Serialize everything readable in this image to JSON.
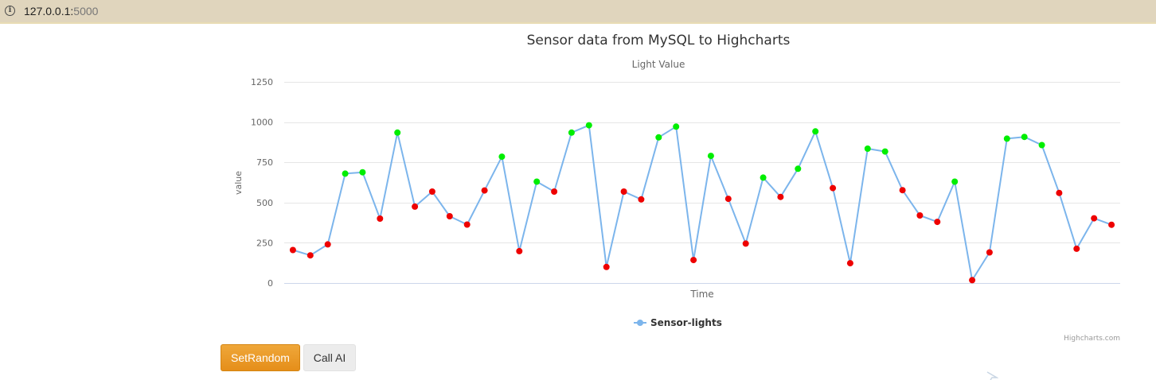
{
  "browser": {
    "url_host": "127.0.0.1:",
    "url_port": "5000"
  },
  "buttons": {
    "set_random": "SetRandom",
    "call_ai": "Call AI"
  },
  "colors": {
    "line": "#7cb5ec",
    "high_marker": "#00ee00",
    "low_marker": "#ee0000",
    "grid": "#e6e6e6",
    "text": "#333333",
    "axis_text": "#666666",
    "button_primary": "#e8951f"
  },
  "chart_data": {
    "type": "line",
    "title": "Sensor data from MySQL to Highcharts",
    "subtitle": "Light Value",
    "xlabel": "Time",
    "ylabel": "value",
    "ylim": [
      0,
      1250
    ],
    "yticks": [
      0,
      250,
      500,
      750,
      1000,
      1250
    ],
    "grid": true,
    "legend_position": "bottom-center",
    "credits": "Highcharts.com",
    "marker_threshold": 600,
    "series": [
      {
        "name": "Sensor-lights",
        "values": [
          205,
          172,
          240,
          680,
          688,
          400,
          935,
          475,
          568,
          415,
          363,
          575,
          785,
          198,
          630,
          568,
          935,
          980,
          100,
          568,
          520,
          905,
          972,
          143,
          790,
          523,
          245,
          655,
          535,
          710,
          942,
          590,
          123,
          835,
          817,
          577,
          420,
          380,
          630,
          18,
          190,
          897,
          908,
          857,
          560,
          213,
          402,
          362
        ]
      }
    ]
  }
}
